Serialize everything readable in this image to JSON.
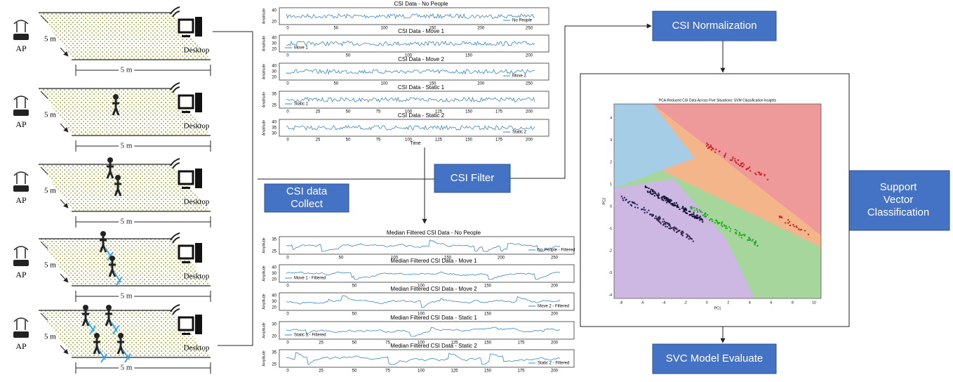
{
  "scenarios": [
    {
      "ap": "AP",
      "desktop": "Desktop",
      "side": "5 m",
      "width": "5 m"
    },
    {
      "ap": "AP",
      "desktop": "Desktop",
      "side": "5 m",
      "width": "5 m"
    },
    {
      "ap": "AP",
      "desktop": "Desktop",
      "side": "5 m",
      "width": "5 m"
    },
    {
      "ap": "AP",
      "desktop": "Desktop",
      "side": "5 m",
      "width": "5 m"
    },
    {
      "ap": "AP",
      "desktop": "Desktop",
      "side": "5 m",
      "width": "5 m"
    }
  ],
  "raw_plots": {
    "y_label": "Amplitude",
    "x_label": "Time",
    "plots": [
      {
        "title": "CSI Data - No People",
        "legend": "No People",
        "yticks": [
          "40",
          "20"
        ],
        "xticks": [
          "0",
          "50",
          "100",
          "150",
          "200",
          "250"
        ]
      },
      {
        "title": "CSI Data - Move 1",
        "legend": "Move 1",
        "yticks": [
          "40",
          "30",
          "20"
        ],
        "xticks": [
          "0",
          "50",
          "100",
          "150",
          "200"
        ]
      },
      {
        "title": "CSI Data - Move 2",
        "legend": "Move 2",
        "yticks": [
          "40",
          "30",
          "20"
        ],
        "xticks": [
          "0",
          "50",
          "100",
          "150",
          "200",
          "250"
        ]
      },
      {
        "title": "CSI Data - Static 1",
        "legend": "Static 1",
        "yticks": [
          "35",
          "25"
        ],
        "xticks": [
          "0",
          "25",
          "50",
          "75",
          "100",
          "125",
          "150",
          "175",
          "200"
        ]
      },
      {
        "title": "CSI Data - Static 2",
        "legend": "Static 2",
        "yticks": [
          "40",
          "35",
          "30"
        ],
        "xticks": [
          "0",
          "25",
          "50",
          "75",
          "100",
          "125",
          "150",
          "175",
          "200"
        ]
      }
    ]
  },
  "filtered_plots": {
    "y_label": "Amplitude",
    "plots": [
      {
        "title": "Median Filtered CSI Data - No People",
        "legend": "No People - Filtered",
        "yticks": [
          "35",
          "25"
        ],
        "xticks": [
          "0",
          "50",
          "100",
          "150",
          "200",
          "250"
        ]
      },
      {
        "title": "Median Filtered CSI Data - Move 1",
        "legend": "Move 1 - Filtered",
        "yticks": [
          "40",
          "30",
          "20"
        ],
        "xticks": [
          "0",
          "50",
          "100",
          "150",
          "200"
        ]
      },
      {
        "title": "Median Filtered CSI Data - Move 2",
        "legend": "Move 2 - Filtered",
        "yticks": [
          "40",
          "30",
          "20"
        ],
        "xticks": [
          "0",
          "50",
          "100",
          "150",
          "200"
        ]
      },
      {
        "title": "Median Filtered CSI Data - Static 1",
        "legend": "Static 1 - Filtered",
        "yticks": [
          "30",
          "20"
        ],
        "xticks": [
          "0",
          "25",
          "50",
          "75",
          "100",
          "125",
          "150",
          "175",
          "200"
        ]
      },
      {
        "title": "Median Filtered CSI Data - Static 2",
        "legend": "Static 2 - Filtered",
        "yticks": [
          "35",
          "25"
        ],
        "xticks": [
          "0",
          "25",
          "50",
          "75",
          "100",
          "125",
          "150",
          "175",
          "200"
        ]
      }
    ]
  },
  "boxes": {
    "collect": "CSI data Collect",
    "filter": "CSI Filter",
    "normalization": "CSI Normalization",
    "svc": "Support Vector Classification",
    "evaluate": "SVC Model Evaluate"
  },
  "svm_plot": {
    "title": "PCA-Reduced CSI Data Across Five Situations: SVM Classification Insights",
    "x_label": "PC1",
    "y_label": "PC2",
    "xticks": [
      "-8",
      "-6",
      "-4",
      "-2",
      "0",
      "2",
      "4",
      "6",
      "8",
      "10"
    ],
    "yticks": [
      "4",
      "3",
      "2",
      "1",
      "0",
      "-1",
      "-2",
      "-3",
      "-4"
    ]
  }
}
